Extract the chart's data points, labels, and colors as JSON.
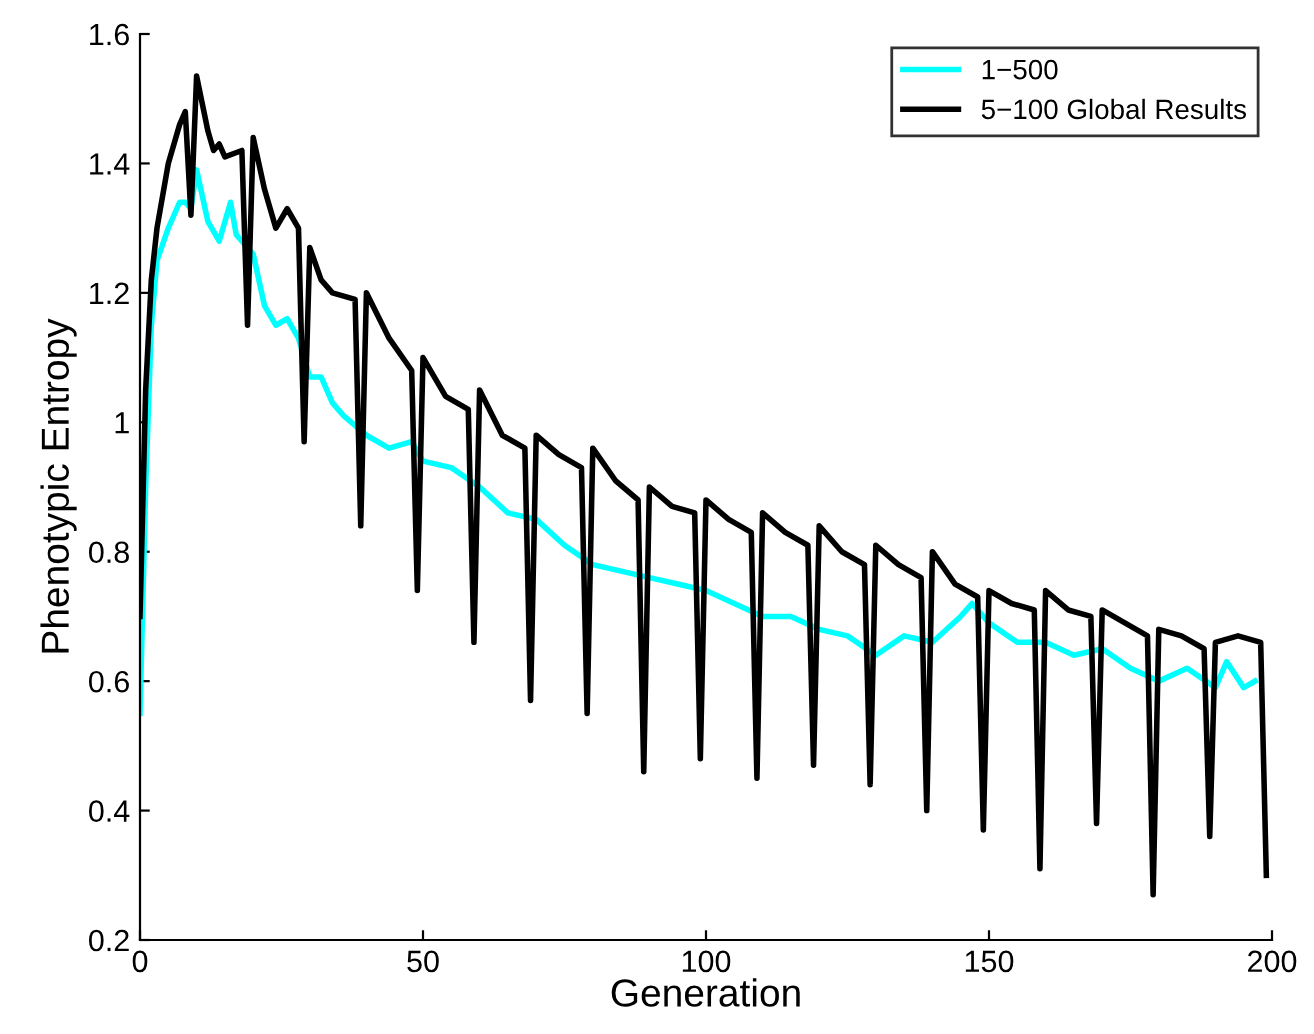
{
  "chart_data": {
    "type": "line",
    "xlabel": "Generation",
    "ylabel": "Phenotypic Entropy",
    "xlim": [
      0,
      200
    ],
    "ylim": [
      0.2,
      1.6
    ],
    "xticks": [
      0,
      50,
      100,
      150,
      200
    ],
    "yticks": [
      0.2,
      0.4,
      0.6,
      0.8,
      1,
      1.2,
      1.4,
      1.6
    ],
    "legend": "top right",
    "grid": false,
    "series": [
      {
        "name": "1−500",
        "color": "#00ffff",
        "x": [
          0,
          1,
          2,
          3,
          5,
          7,
          8,
          9,
          10,
          12,
          14,
          16,
          17,
          20,
          22,
          24,
          26,
          28,
          30,
          32,
          34,
          36,
          40,
          44,
          48,
          50,
          55,
          60,
          65,
          70,
          75,
          80,
          85,
          90,
          95,
          100,
          105,
          110,
          115,
          120,
          125,
          130,
          135,
          140,
          145,
          147,
          150,
          155,
          160,
          165,
          170,
          175,
          180,
          185,
          190,
          192,
          195,
          197
        ],
        "values": [
          0.55,
          0.9,
          1.15,
          1.25,
          1.3,
          1.34,
          1.34,
          1.33,
          1.39,
          1.31,
          1.28,
          1.34,
          1.29,
          1.26,
          1.18,
          1.15,
          1.16,
          1.13,
          1.07,
          1.07,
          1.03,
          1.01,
          0.98,
          0.96,
          0.97,
          0.94,
          0.93,
          0.9,
          0.86,
          0.85,
          0.81,
          0.78,
          0.77,
          0.76,
          0.75,
          0.74,
          0.72,
          0.7,
          0.7,
          0.68,
          0.67,
          0.64,
          0.67,
          0.66,
          0.7,
          0.72,
          0.69,
          0.66,
          0.66,
          0.64,
          0.65,
          0.62,
          0.6,
          0.62,
          0.59,
          0.63,
          0.59,
          0.6
        ]
      },
      {
        "name": "5−100 Global Results",
        "color": "#000000",
        "x": [
          0,
          1,
          2,
          3,
          5,
          7,
          8,
          9,
          10,
          12,
          13,
          14,
          15,
          18,
          19,
          20,
          22,
          24,
          26,
          28,
          29,
          30,
          32,
          34,
          38,
          39,
          40,
          44,
          48,
          49,
          50,
          54,
          58,
          59,
          60,
          64,
          68,
          69,
          70,
          74,
          78,
          79,
          80,
          84,
          88,
          89,
          90,
          94,
          98,
          99,
          100,
          104,
          108,
          109,
          110,
          114,
          118,
          119,
          120,
          124,
          128,
          129,
          130,
          134,
          138,
          139,
          140,
          144,
          148,
          149,
          150,
          154,
          158,
          159,
          160,
          164,
          168,
          169,
          170,
          174,
          178,
          179,
          180,
          184,
          188,
          189,
          190,
          194,
          198,
          199
        ],
        "values": [
          0.7,
          1.05,
          1.22,
          1.3,
          1.4,
          1.46,
          1.48,
          1.32,
          1.535,
          1.45,
          1.42,
          1.43,
          1.41,
          1.42,
          1.15,
          1.44,
          1.36,
          1.3,
          1.33,
          1.3,
          0.97,
          1.27,
          1.22,
          1.2,
          1.19,
          0.84,
          1.2,
          1.13,
          1.08,
          0.74,
          1.1,
          1.04,
          1.02,
          0.66,
          1.05,
          0.98,
          0.96,
          0.57,
          0.98,
          0.95,
          0.93,
          0.55,
          0.96,
          0.91,
          0.88,
          0.46,
          0.9,
          0.87,
          0.86,
          0.48,
          0.88,
          0.85,
          0.83,
          0.45,
          0.86,
          0.83,
          0.81,
          0.47,
          0.84,
          0.8,
          0.78,
          0.44,
          0.81,
          0.78,
          0.76,
          0.4,
          0.8,
          0.75,
          0.73,
          0.37,
          0.74,
          0.72,
          0.71,
          0.31,
          0.74,
          0.71,
          0.7,
          0.38,
          0.71,
          0.69,
          0.67,
          0.27,
          0.68,
          0.67,
          0.65,
          0.36,
          0.66,
          0.67,
          0.66,
          0.3
        ]
      }
    ]
  }
}
